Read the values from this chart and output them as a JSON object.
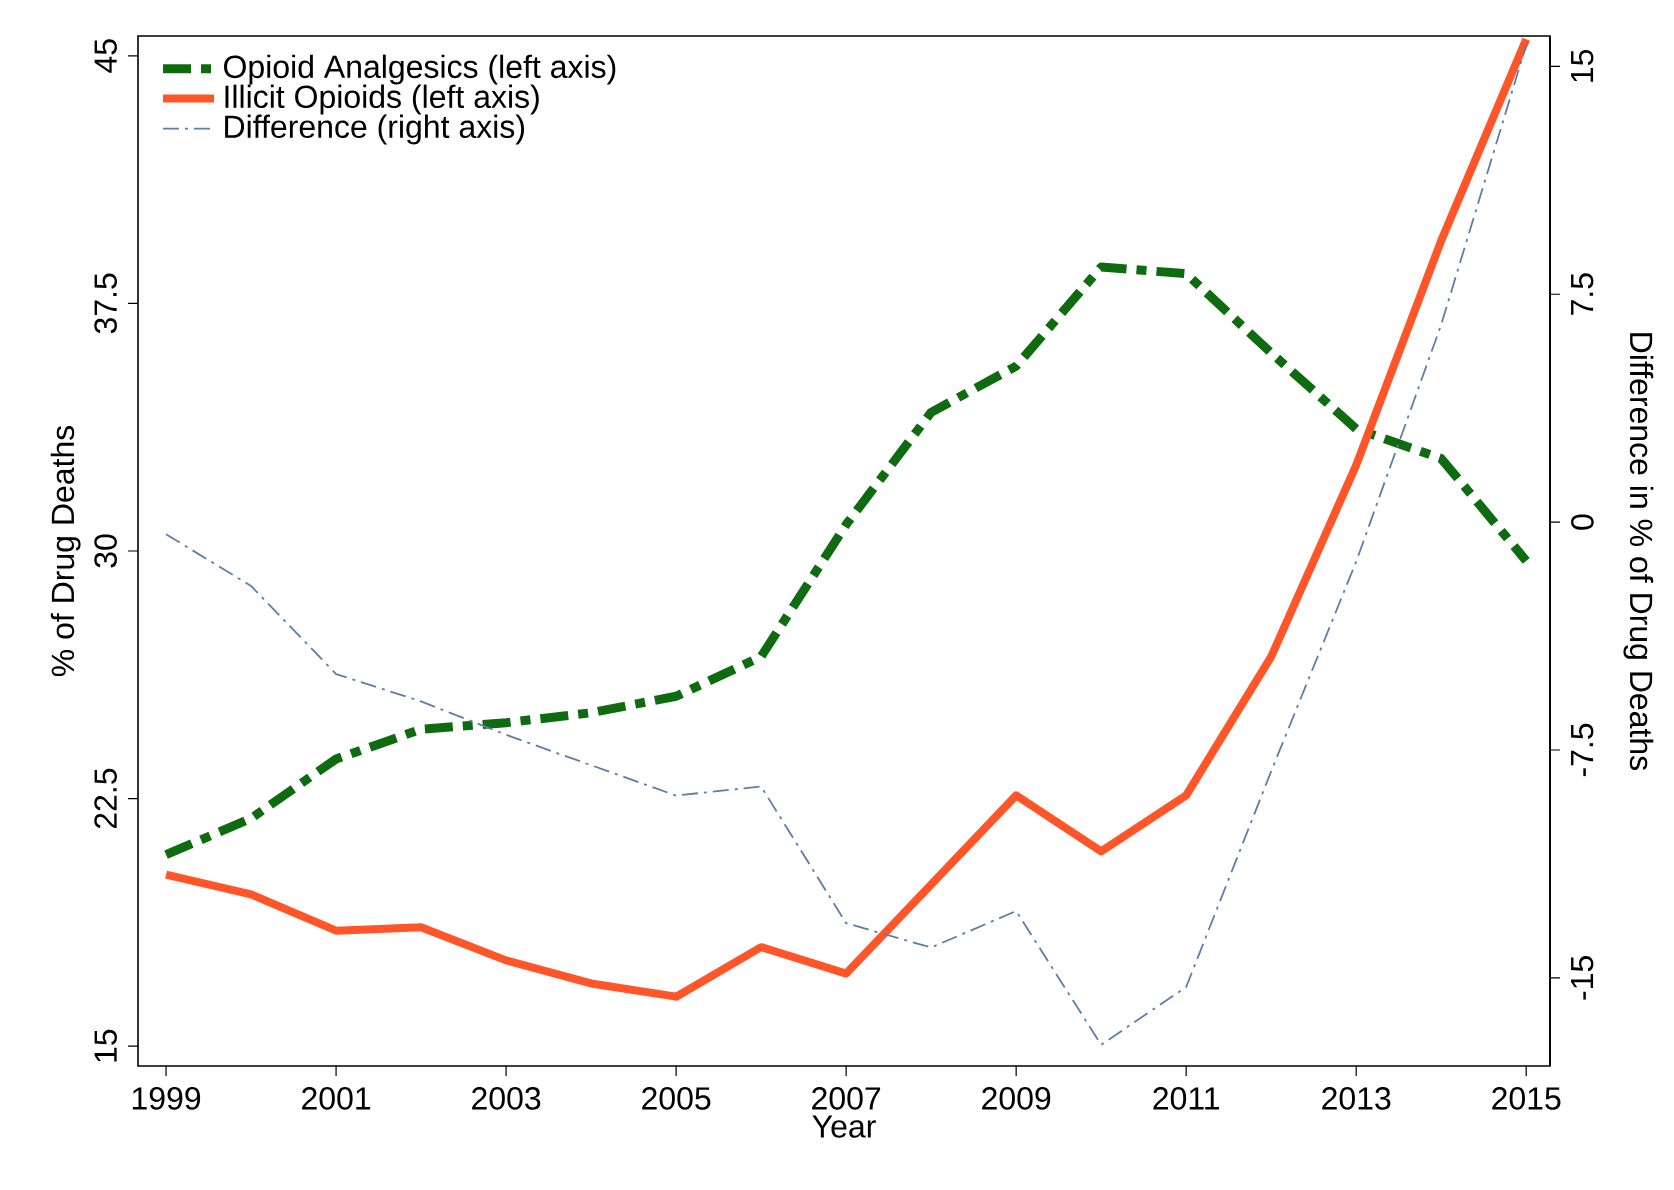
{
  "chart_data": {
    "type": "line",
    "xlabel": "Year",
    "ylabel": "% of Drug Deaths",
    "y2label": "Difference in % of Drug Deaths",
    "x": [
      1999,
      2000,
      2001,
      2002,
      2003,
      2004,
      2005,
      2006,
      2007,
      2008,
      2009,
      2010,
      2011,
      2012,
      2013,
      2014,
      2015
    ],
    "series": [
      {
        "name": "Opioid Analgesics (left axis)",
        "color": "#0f6b0f",
        "line_style": "dashed",
        "values": [
          20.8,
          21.9,
          23.7,
          24.6,
          24.8,
          25.1,
          25.6,
          26.8,
          30.8,
          34.2,
          35.6,
          38.6,
          38.4,
          36.0,
          33.7,
          32.8,
          29.7
        ]
      },
      {
        "name": "Illicit Opioids (left axis)",
        "color": "#ff5528",
        "line_style": "solid",
        "values": [
          20.2,
          19.6,
          18.5,
          18.6,
          17.6,
          16.9,
          16.5,
          18.0,
          17.2,
          19.9,
          22.6,
          20.9,
          22.6,
          26.8,
          32.6,
          39.4,
          45.5
        ]
      },
      {
        "name": "Difference (right axis)",
        "color": "#5b7fa6",
        "line_style": "dashed",
        "axis": "y2",
        "values": [
          -0.4,
          -2.1,
          -5.0,
          -5.9,
          -7.0,
          -8.0,
          -9.0,
          -8.7,
          -13.2,
          -14.0,
          -12.8,
          -17.2,
          -15.3,
          -8.2,
          -1.3,
          6.5,
          15.7
        ]
      }
    ],
    "xlim": [
      1998.67,
      2015.28
    ],
    "xticks": [
      1999,
      2001,
      2003,
      2005,
      2007,
      2009,
      2011,
      2013,
      2015
    ],
    "ylim": [
      14.4,
      45.6
    ],
    "yticks": [
      15,
      22.5,
      30,
      37.5,
      45
    ],
    "y2lim": [
      -17.9,
      16
    ],
    "y2ticks": [
      -15,
      -7.5,
      0,
      7.5,
      15
    ],
    "grid": false,
    "legend": "top left",
    "marker": "none"
  }
}
